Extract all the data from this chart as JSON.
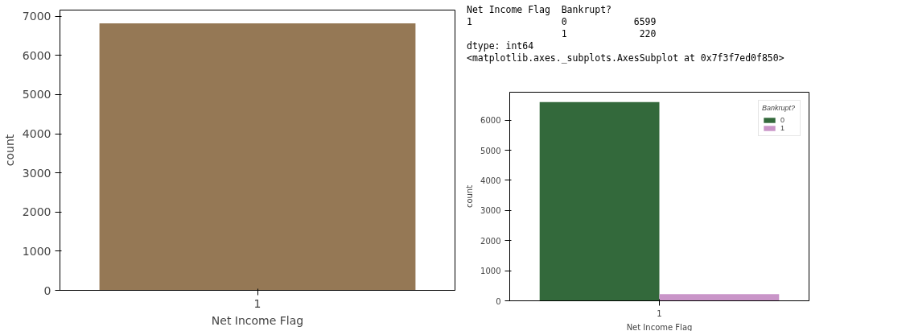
{
  "chart_data": [
    {
      "type": "bar",
      "xlabel": "Net Income Flag",
      "ylabel": "count",
      "categories": [
        "1"
      ],
      "values": [
        6819
      ],
      "color": "#957855",
      "ylim": [
        0,
        7160
      ],
      "yticks": [
        0,
        1000,
        2000,
        3000,
        4000,
        5000,
        6000,
        7000
      ],
      "grid": false
    },
    {
      "type": "bar",
      "xlabel": "Net Income Flag",
      "ylabel": "count",
      "categories": [
        "1"
      ],
      "legend_title": "Bankrupt?",
      "legend": "top right",
      "grid": false,
      "annotations": [
        "Net Income Flag  Bankrupt?",
        "1                0            6599",
        "                 1             220",
        "dtype: int64",
        "<matplotlib.axes._subplots.AxesSubplot at 0x7f3f7ed0f850>"
      ],
      "series": [
        {
          "name": "0",
          "color": "#33693b",
          "values": [
            6599
          ]
        },
        {
          "name": "1",
          "color": "#c995c8",
          "values": [
            220
          ]
        }
      ],
      "ylim": [
        0,
        6929
      ],
      "yticks": [
        0,
        1000,
        2000,
        3000,
        4000,
        5000,
        6000
      ]
    }
  ]
}
